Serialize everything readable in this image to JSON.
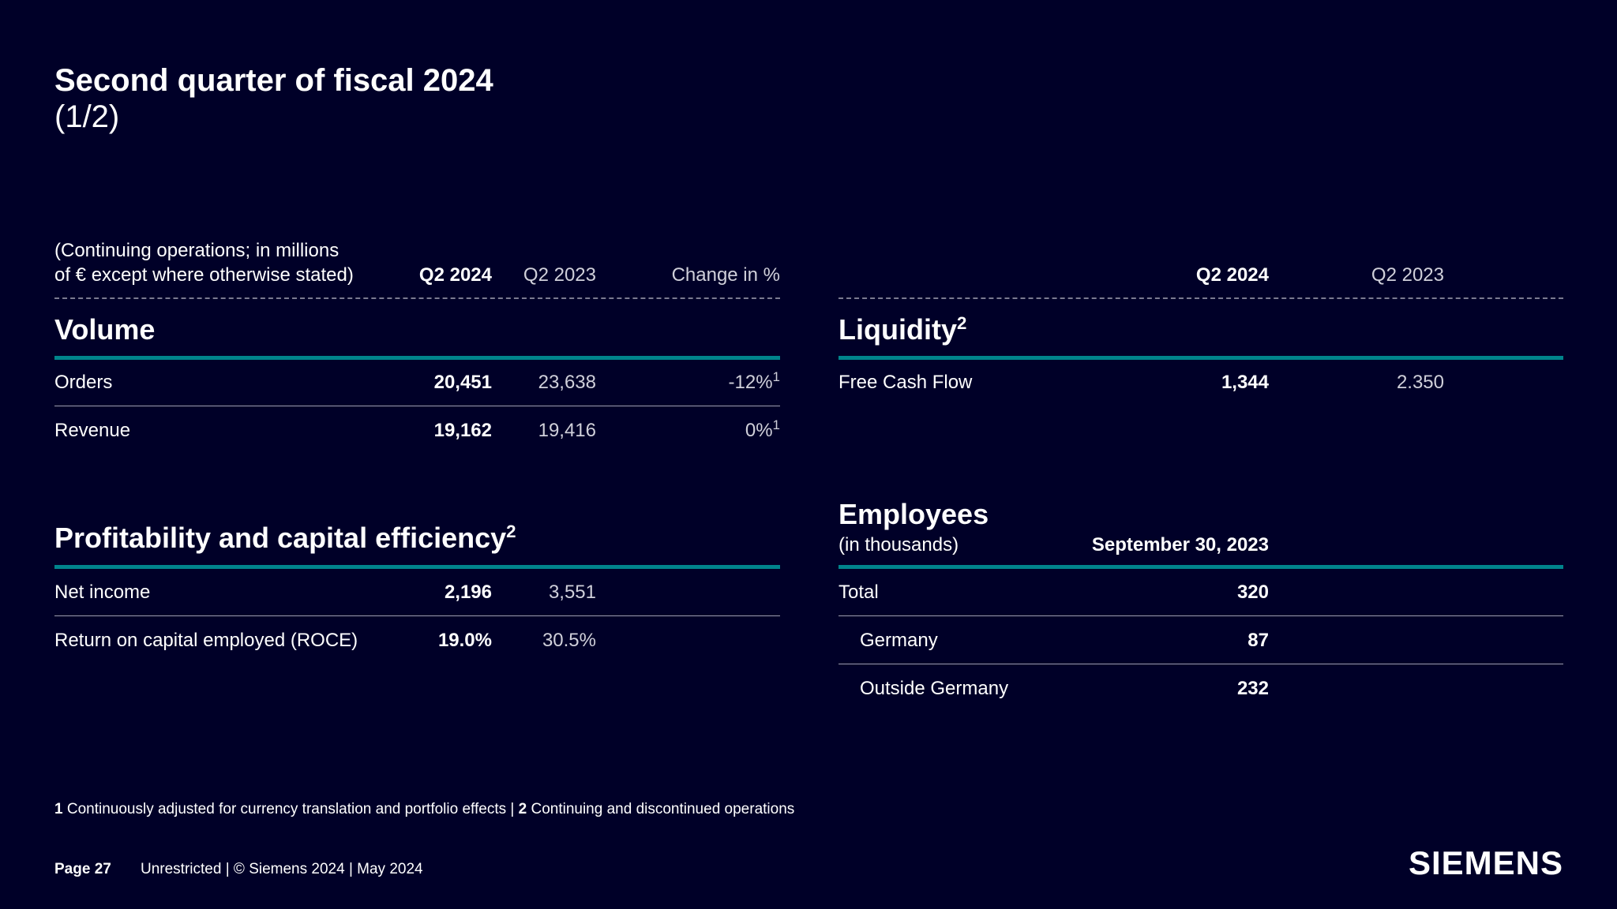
{
  "title": {
    "line1": "Second quarter of fiscal 2024",
    "line2": "(1/2)"
  },
  "left_header": {
    "note_line1": "(Continuing operations; in millions",
    "note_line2": "of € except where otherwise stated)",
    "col1": "Q2 2024",
    "col2": "Q2 2023",
    "col3": "Change in %"
  },
  "right_header": {
    "col1": "Q2 2024",
    "col2": "Q2 2023"
  },
  "volume": {
    "title": "Volume",
    "rows": [
      {
        "label": "Orders",
        "q2_2024": "20,451",
        "q2_2023": "23,638",
        "change": "-12%",
        "footnote": "1"
      },
      {
        "label": "Revenue",
        "q2_2024": "19,162",
        "q2_2023": "19,416",
        "change": "0%",
        "footnote": "1"
      }
    ]
  },
  "profitability": {
    "title": "Profitability and capital efficiency",
    "footnote": "2",
    "rows": [
      {
        "label": "Net income",
        "q2_2024": "2,196",
        "q2_2023": "3,551"
      },
      {
        "label": "Return on capital employed (ROCE)",
        "q2_2024": "19.0%",
        "q2_2023": "30.5%"
      }
    ]
  },
  "liquidity": {
    "title": "Liquidity",
    "footnote": "2",
    "rows": [
      {
        "label": "Free Cash Flow",
        "q2_2024": "1,344",
        "q2_2023": "2.350"
      }
    ]
  },
  "employees": {
    "title": "Employees",
    "subtitle": "(in thousands)",
    "col_header": "September 30, 2023",
    "rows": [
      {
        "label": "Total",
        "value": "320"
      },
      {
        "label": "Germany",
        "value": "87"
      },
      {
        "label": "Outside Germany",
        "value": "232"
      }
    ]
  },
  "footnotes": {
    "n1": "1",
    "t1": "Continuously adjusted for currency translation and portfolio effects",
    "sep": "|",
    "n2": "2",
    "t2": "Continuing and discontinued operations"
  },
  "footer": {
    "page": "Page 27",
    "text": "Unrestricted | © Siemens 2024 | May 2024",
    "logo": "SIEMENS"
  },
  "colors": {
    "background": "#000028",
    "accent": "#00848c",
    "text": "#ffffff"
  }
}
